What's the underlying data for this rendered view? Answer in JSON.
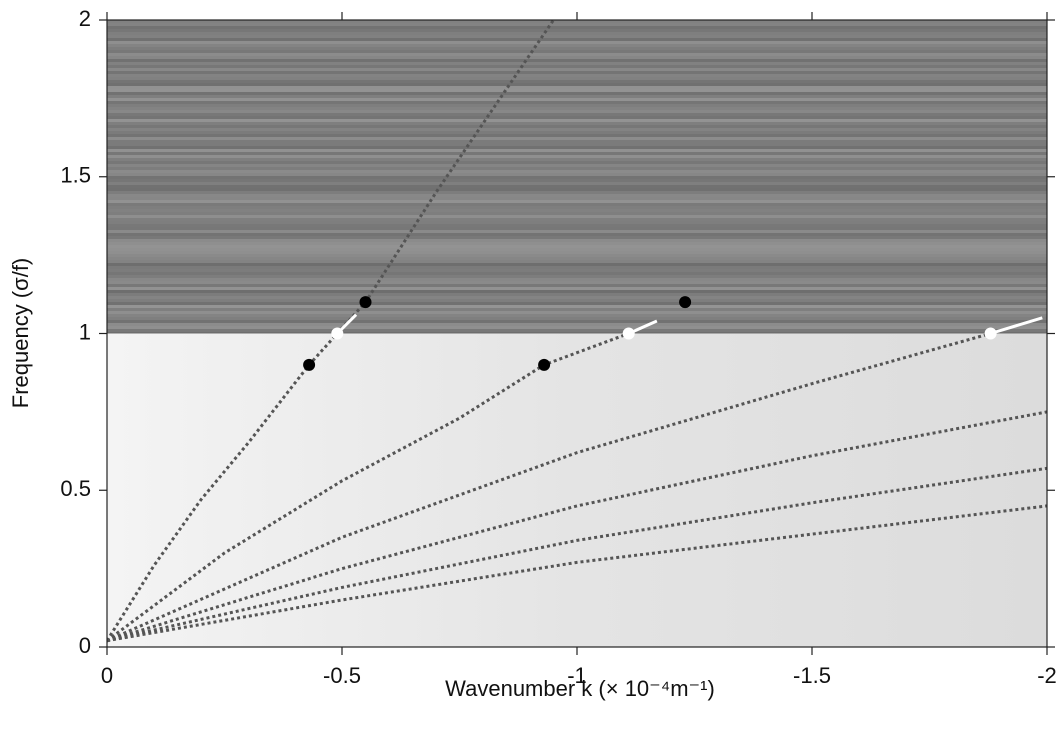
{
  "chart_data": {
    "type": "scatter",
    "xlabel": "Wavenumber k (× 10⁻⁴m⁻¹)",
    "ylabel": "Frequency (σ/f)",
    "xlim": [
      0,
      -2
    ],
    "ylim": [
      0,
      2
    ],
    "xticks": [
      0,
      -0.5,
      -1,
      -1.5,
      -2
    ],
    "yticks": [
      0,
      0.5,
      1,
      1.5,
      2
    ],
    "regions": [
      {
        "ylim": [
          1,
          2
        ],
        "color": "#7a7a7a"
      },
      {
        "ylim": [
          0,
          1
        ],
        "color": "#e6e6e6"
      }
    ],
    "curves": {
      "color": "#555555",
      "lines": [
        {
          "x": [
            0,
            -0.1,
            -0.2,
            -0.3,
            -0.43,
            -0.49,
            -0.55,
            -0.7,
            -0.95
          ],
          "values": [
            0.02,
            0.26,
            0.47,
            0.65,
            0.9,
            1.0,
            1.1,
            1.45,
            2.0
          ]
        },
        {
          "x": [
            0,
            -0.25,
            -0.5,
            -0.75,
            -0.93,
            -1.11
          ],
          "values": [
            0.02,
            0.3,
            0.53,
            0.73,
            0.9,
            1.0
          ]
        },
        {
          "x": [
            0,
            -0.5,
            -1,
            -1.5,
            -1.88
          ],
          "values": [
            0.02,
            0.35,
            0.62,
            0.84,
            1.0
          ]
        },
        {
          "x": [
            0,
            -0.5,
            -1,
            -1.5,
            -2
          ],
          "values": [
            0.02,
            0.25,
            0.45,
            0.61,
            0.75
          ]
        },
        {
          "x": [
            0,
            -0.5,
            -1,
            -1.5,
            -2
          ],
          "values": [
            0.02,
            0.19,
            0.34,
            0.46,
            0.57
          ]
        },
        {
          "x": [
            0,
            -0.5,
            -1,
            -1.5,
            -2
          ],
          "values": [
            0.02,
            0.15,
            0.27,
            0.36,
            0.45
          ]
        }
      ]
    },
    "series": [
      {
        "color": "#000000",
        "x": [
          -0.43,
          -0.55,
          -0.93,
          -1.23
        ],
        "values": [
          0.9,
          1.1,
          0.9,
          1.1
        ]
      },
      {
        "color": "#ffffff",
        "x": [
          -0.49,
          -1.11,
          -1.88
        ],
        "values": [
          1.0,
          1.0,
          1.0
        ]
      }
    ],
    "vectors": {
      "color": "#ffffff",
      "x": [
        -0.49,
        -1.11,
        -1.88
      ],
      "values": [
        1.0,
        1.0,
        1.0
      ],
      "x_end": [
        -0.53,
        -1.17,
        -1.99
      ],
      "values_end": [
        1.06,
        1.04,
        1.05
      ]
    }
  }
}
